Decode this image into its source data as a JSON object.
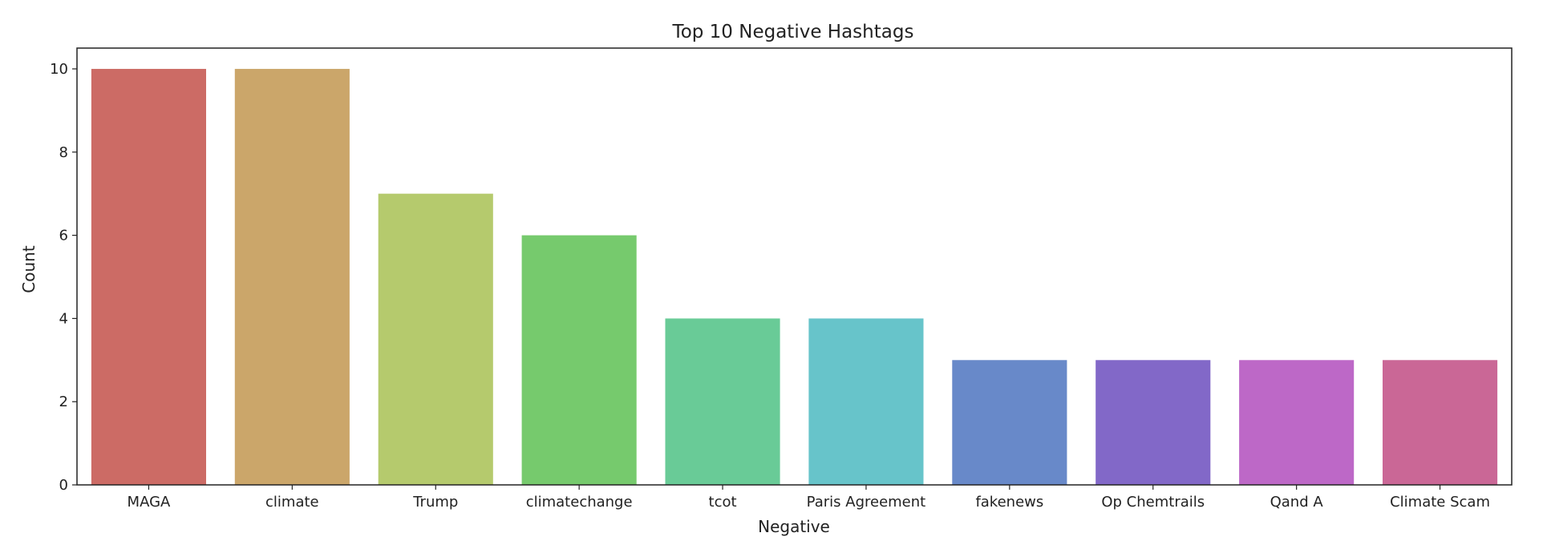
{
  "chart_data": {
    "type": "bar",
    "title": "Top 10 Negative Hashtags",
    "xlabel": "Negative",
    "ylabel": "Count",
    "categories": [
      "MAGA",
      "climate",
      "Trump",
      "climatechange",
      "tcot",
      "Paris Agreement",
      "fakenews",
      "Op Chemtrails",
      "Qand A",
      "Climate Scam"
    ],
    "values": [
      10,
      10,
      7,
      6,
      4,
      4,
      3,
      3,
      3,
      3
    ],
    "colors": [
      "#cc6b65",
      "#cba66a",
      "#b5ca6d",
      "#76ca6d",
      "#69cb97",
      "#67c4ca",
      "#6889c9",
      "#8268c8",
      "#bd68c7",
      "#ca6796"
    ],
    "ylim": [
      0,
      10.5
    ],
    "yticks": [
      0,
      2,
      4,
      6,
      8,
      10
    ],
    "grid": false,
    "legend": "none"
  }
}
